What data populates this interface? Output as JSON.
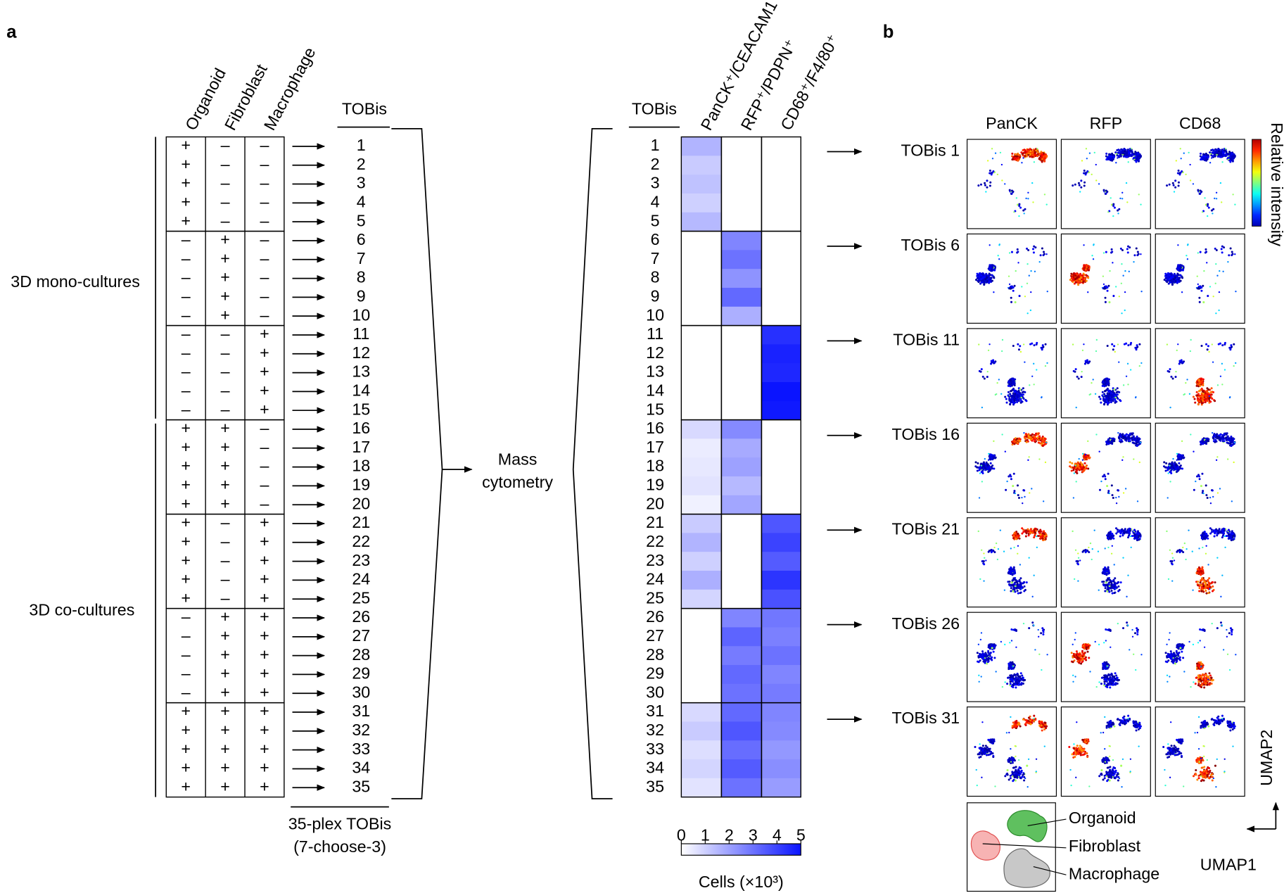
{
  "panel_a": {
    "label": "a",
    "conditions_header": [
      {
        "text": "Organoid",
        "color": "#1e9e1e"
      },
      {
        "text": "Fibroblast",
        "color": "#e8231c"
      },
      {
        "text": "Macrophage",
        "color": "#000000"
      }
    ],
    "plus_color": "#2233ee",
    "tobis_header": "TOBis",
    "rows": [
      {
        "id": "1",
        "conditions": [
          "+",
          "–",
          "–"
        ]
      },
      {
        "id": "2",
        "conditions": [
          "+",
          "–",
          "–"
        ]
      },
      {
        "id": "3",
        "conditions": [
          "+",
          "–",
          "–"
        ]
      },
      {
        "id": "4",
        "conditions": [
          "+",
          "–",
          "–"
        ]
      },
      {
        "id": "5",
        "conditions": [
          "+",
          "–",
          "–"
        ]
      },
      {
        "id": "6",
        "conditions": [
          "–",
          "+",
          "–"
        ]
      },
      {
        "id": "7",
        "conditions": [
          "–",
          "+",
          "–"
        ]
      },
      {
        "id": "8",
        "conditions": [
          "–",
          "+",
          "–"
        ]
      },
      {
        "id": "9",
        "conditions": [
          "–",
          "+",
          "–"
        ]
      },
      {
        "id": "10",
        "conditions": [
          "–",
          "+",
          "–"
        ]
      },
      {
        "id": "11",
        "conditions": [
          "–",
          "–",
          "+"
        ]
      },
      {
        "id": "12",
        "conditions": [
          "–",
          "–",
          "+"
        ]
      },
      {
        "id": "13",
        "conditions": [
          "–",
          "–",
          "+"
        ]
      },
      {
        "id": "14",
        "conditions": [
          "–",
          "–",
          "+"
        ]
      },
      {
        "id": "15",
        "conditions": [
          "–",
          "–",
          "+"
        ]
      },
      {
        "id": "16",
        "conditions": [
          "+",
          "+",
          "–"
        ]
      },
      {
        "id": "17",
        "conditions": [
          "+",
          "+",
          "–"
        ]
      },
      {
        "id": "18",
        "conditions": [
          "+",
          "+",
          "–"
        ]
      },
      {
        "id": "19",
        "conditions": [
          "+",
          "+",
          "–"
        ]
      },
      {
        "id": "20",
        "conditions": [
          "+",
          "+",
          "–"
        ]
      },
      {
        "id": "21",
        "conditions": [
          "+",
          "–",
          "+"
        ]
      },
      {
        "id": "22",
        "conditions": [
          "+",
          "–",
          "+"
        ]
      },
      {
        "id": "23",
        "conditions": [
          "+",
          "–",
          "+"
        ]
      },
      {
        "id": "24",
        "conditions": [
          "+",
          "–",
          "+"
        ]
      },
      {
        "id": "25",
        "conditions": [
          "+",
          "–",
          "+"
        ]
      },
      {
        "id": "26",
        "conditions": [
          "–",
          "+",
          "+"
        ]
      },
      {
        "id": "27",
        "conditions": [
          "–",
          "+",
          "+"
        ]
      },
      {
        "id": "28",
        "conditions": [
          "–",
          "+",
          "+"
        ]
      },
      {
        "id": "29",
        "conditions": [
          "–",
          "+",
          "+"
        ]
      },
      {
        "id": "30",
        "conditions": [
          "–",
          "+",
          "+"
        ]
      },
      {
        "id": "31",
        "conditions": [
          "+",
          "+",
          "+"
        ]
      },
      {
        "id": "32",
        "conditions": [
          "+",
          "+",
          "+"
        ]
      },
      {
        "id": "33",
        "conditions": [
          "+",
          "+",
          "+"
        ]
      },
      {
        "id": "34",
        "conditions": [
          "+",
          "+",
          "+"
        ]
      },
      {
        "id": "35",
        "conditions": [
          "+",
          "+",
          "+"
        ]
      }
    ],
    "group_labels": [
      "3D mono-cultures",
      "3D co-cultures"
    ],
    "plex_label": "35-plex TOBis",
    "plex_color": "#f39c12",
    "choose_label": "(7-choose-3)",
    "mass_cytometry": [
      "Mass",
      "cytometry"
    ]
  },
  "heatmap": {
    "header": "TOBis",
    "columns": [
      {
        "text": "PanCK⁺/CEACAM1⁺",
        "color": "#1e9e1e"
      },
      {
        "text": "RFP⁺/PDPN⁺",
        "color": "#e8231c"
      },
      {
        "text": "CD68⁺/F4/80⁺",
        "color": "#000000"
      }
    ],
    "values": [
      [
        1.6,
        0,
        0
      ],
      [
        1.1,
        0,
        0
      ],
      [
        1.3,
        0,
        0
      ],
      [
        1.0,
        0,
        0
      ],
      [
        1.5,
        0,
        0
      ],
      [
        0,
        2.6,
        0
      ],
      [
        0,
        3.0,
        0
      ],
      [
        0,
        2.3,
        0
      ],
      [
        0,
        3.2,
        0
      ],
      [
        0,
        1.7,
        0
      ],
      [
        0,
        0,
        4.4
      ],
      [
        0,
        0,
        4.7
      ],
      [
        0,
        0,
        4.6
      ],
      [
        0,
        0,
        5.0
      ],
      [
        0,
        0,
        4.9
      ],
      [
        0.8,
        2.5,
        0
      ],
      [
        0.4,
        1.8,
        0
      ],
      [
        0.5,
        2.0,
        0
      ],
      [
        0.6,
        1.5,
        0
      ],
      [
        0.3,
        1.9,
        0
      ],
      [
        1.1,
        0,
        3.6
      ],
      [
        1.6,
        0,
        4.0
      ],
      [
        1.0,
        0,
        3.5
      ],
      [
        1.7,
        0,
        4.3
      ],
      [
        0.9,
        0,
        3.7
      ],
      [
        0,
        2.6,
        2.9
      ],
      [
        0,
        3.3,
        2.7
      ],
      [
        0,
        2.8,
        3.0
      ],
      [
        0,
        3.2,
        2.6
      ],
      [
        0,
        3.0,
        2.8
      ],
      [
        0.8,
        3.2,
        2.6
      ],
      [
        1.1,
        3.6,
        2.5
      ],
      [
        0.7,
        3.1,
        2.2
      ],
      [
        0.9,
        3.5,
        2.4
      ],
      [
        0.6,
        3.0,
        2.1
      ]
    ],
    "colorbar": {
      "range": [
        0,
        5
      ],
      "ticks": [
        0,
        1,
        2,
        3,
        4,
        5
      ],
      "label": "Cells (×10³)",
      "color_low": "#ffffff",
      "color_high": "#0a14ff"
    }
  },
  "panel_b": {
    "label": "b",
    "columns": [
      "PanCK",
      "RFP",
      "CD68"
    ],
    "rows": [
      "TOBis 1",
      "TOBis 6",
      "TOBis 11",
      "TOBis 16",
      "TOBis 21",
      "TOBis 26",
      "TOBis 31"
    ],
    "intensity_label": "Relative intensity",
    "legend": [
      {
        "text": "Organoid",
        "color": "#1e9e1e"
      },
      {
        "text": "Fibroblast",
        "color": "#e8231c"
      },
      {
        "text": "Macrophage",
        "color": "#000000"
      }
    ],
    "axes": [
      "UMAP1",
      "UMAP2"
    ]
  }
}
